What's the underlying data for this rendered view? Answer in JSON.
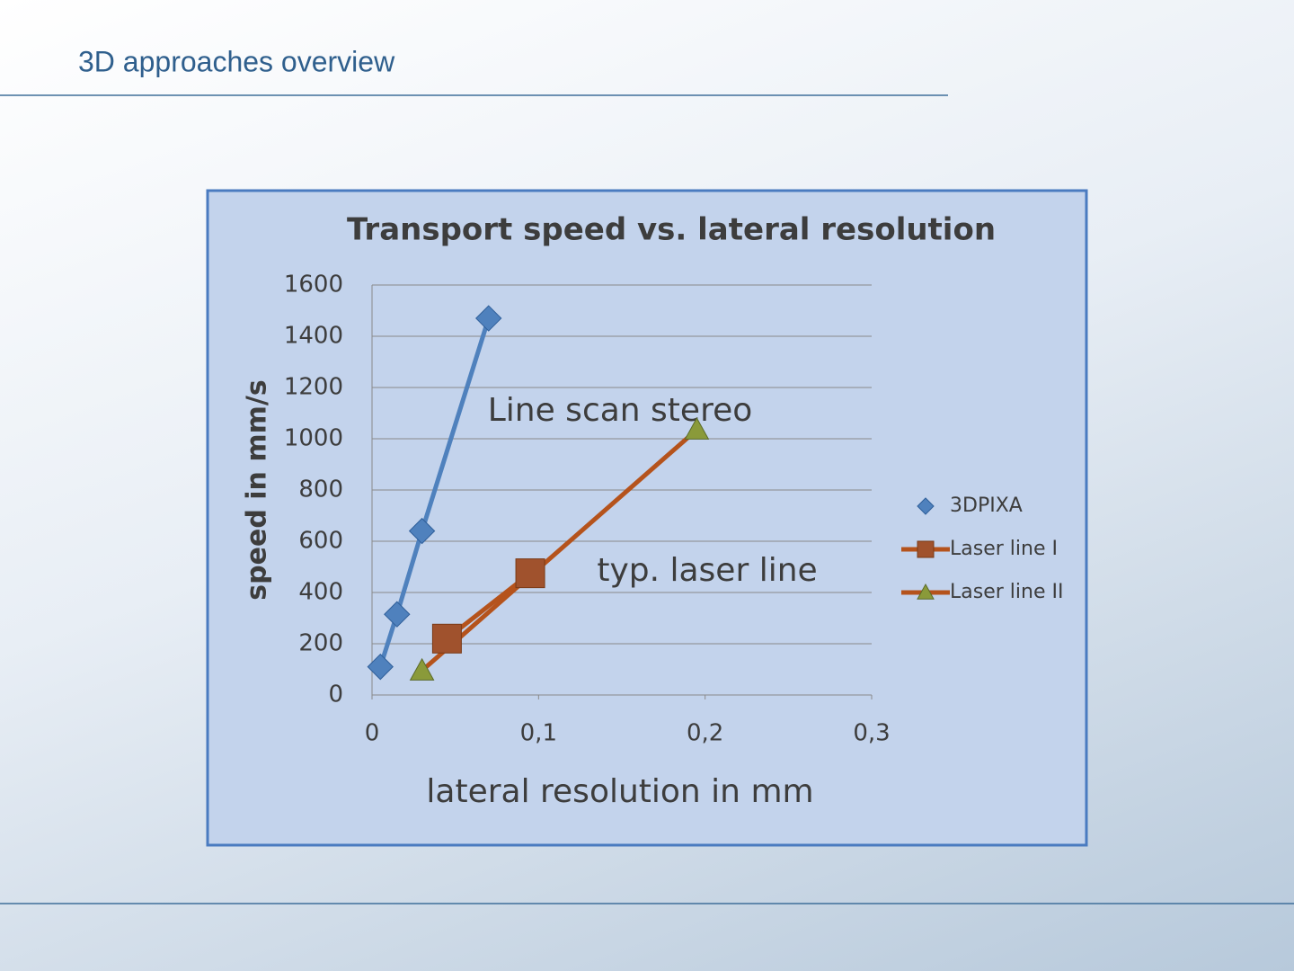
{
  "slide": {
    "title": "3D approaches overview"
  },
  "chart_data": {
    "type": "scatter",
    "title": "Transport speed vs. lateral resolution",
    "x_label": "lateral resolution in mm",
    "y_label": "speed  in mm/s",
    "xlim": [
      0,
      0.3
    ],
    "xticks": [
      0,
      {
        "value": 0.1,
        "label": "0,1"
      },
      {
        "value": 0.2,
        "label": "0,2"
      },
      {
        "value": 0.3,
        "label": "0,3"
      }
    ],
    "ylim": [
      0,
      1600
    ],
    "yticks": [
      0,
      200,
      400,
      600,
      800,
      1000,
      1200,
      1400,
      1600
    ],
    "grid": true,
    "legend": "right",
    "series": [
      {
        "name": "3DPIXA",
        "color": "#4f81bd",
        "marker": "diamond",
        "line": true,
        "x": [
          0.005,
          0.015,
          0.03,
          0.07
        ],
        "values": [
          110,
          315,
          640,
          1470
        ]
      },
      {
        "name": "Laser line I",
        "color": "#b5531c",
        "marker": "square",
        "line": true,
        "x": [
          0.045,
          0.095
        ],
        "values": [
          220,
          475
        ]
      },
      {
        "name": "Laser line II",
        "color": "#b5531c",
        "marker": "triangle",
        "line": true,
        "x": [
          0.03,
          0.195
        ],
        "values": [
          95,
          1035
        ]
      }
    ],
    "annotations": [
      "Line scan stereo",
      "typ. laser line"
    ]
  }
}
